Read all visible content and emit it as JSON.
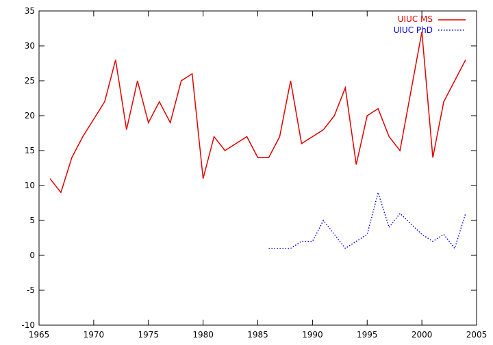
{
  "chart_data": {
    "type": "line",
    "title": "",
    "xlabel": "",
    "ylabel": "",
    "xlim": [
      1965,
      2005
    ],
    "ylim": [
      -10,
      35
    ],
    "x_ticks": [
      1965,
      1970,
      1975,
      1980,
      1985,
      1990,
      1995,
      2000,
      2005
    ],
    "y_ticks": [
      -10,
      -5,
      0,
      5,
      10,
      15,
      20,
      25,
      30,
      35
    ],
    "grid": false,
    "legend_position": "top-right",
    "series": [
      {
        "name": "UIUC MS",
        "color": "#e00000",
        "style": "solid",
        "x": [
          1966,
          1967,
          1968,
          1969,
          1970,
          1971,
          1972,
          1973,
          1974,
          1975,
          1976,
          1977,
          1978,
          1979,
          1980,
          1981,
          1982,
          1983,
          1984,
          1985,
          1986,
          1987,
          1988,
          1989,
          1990,
          1991,
          1992,
          1993,
          1994,
          1995,
          1996,
          1997,
          1998,
          1999,
          2000,
          2001,
          2002,
          2003,
          2004
        ],
        "values": [
          11,
          9,
          14,
          17,
          19.5,
          22,
          28,
          18,
          25,
          19,
          22,
          19,
          25,
          26,
          11,
          17,
          15,
          16,
          17,
          14,
          14,
          17,
          25,
          16,
          17,
          18,
          20,
          24,
          13,
          20,
          21,
          17,
          15,
          23.5,
          32,
          14,
          22,
          25,
          28
        ]
      },
      {
        "name": "UIUC PhD",
        "color": "#0000e0",
        "style": "dotted",
        "x": [
          1986,
          1987,
          1988,
          1989,
          1990,
          1991,
          1992,
          1993,
          1994,
          1995,
          1996,
          1997,
          1998,
          1999,
          2000,
          2001,
          2002,
          2003,
          2004
        ],
        "values": [
          1,
          1,
          1,
          2,
          2,
          5,
          3,
          1,
          2,
          3,
          9,
          4,
          6,
          4.5,
          3,
          2,
          3,
          1,
          6
        ]
      }
    ]
  }
}
